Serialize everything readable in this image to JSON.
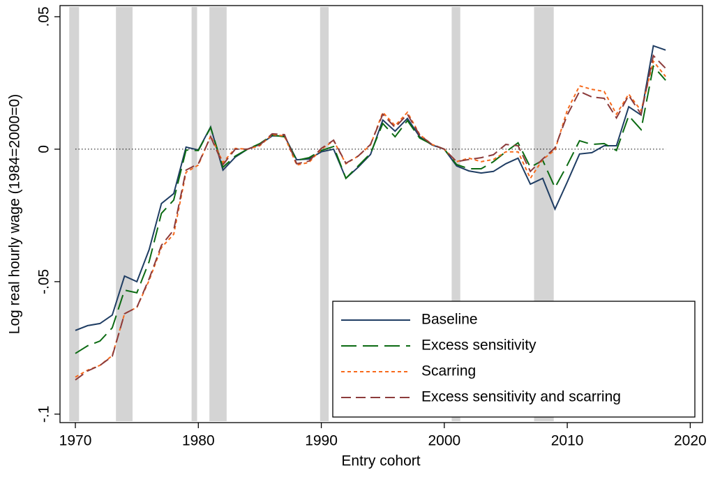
{
  "chart_data": {
    "type": "line",
    "xlabel": "Entry cohort",
    "ylabel": "Log real hourly wage (1984=2000=0)",
    "x": [
      1970,
      1971,
      1972,
      1973,
      1974,
      1975,
      1976,
      1977,
      1978,
      1979,
      1980,
      1981,
      1982,
      1983,
      1984,
      1985,
      1986,
      1987,
      1988,
      1989,
      1990,
      1991,
      1992,
      1993,
      1994,
      1995,
      1996,
      1997,
      1998,
      1999,
      2000,
      2001,
      2002,
      2003,
      2004,
      2005,
      2006,
      2007,
      2008,
      2009,
      2010,
      2011,
      2012,
      2013,
      2014,
      2015,
      2016,
      2017,
      2018
    ],
    "series": [
      {
        "name": "Baseline",
        "color": "#1f3d63",
        "dash": "solid",
        "values": [
          -0.0684,
          -0.0666,
          -0.0658,
          -0.0626,
          -0.0479,
          -0.05,
          -0.0379,
          -0.0205,
          -0.0168,
          0.0008,
          -0.0003,
          0.0084,
          -0.0079,
          -0.003,
          0,
          0.0018,
          0.005,
          0.005,
          -0.004,
          -0.0037,
          -0.001,
          0,
          -0.011,
          -0.0068,
          -0.002,
          0.011,
          0.0068,
          0.0116,
          0.0047,
          0.0016,
          0,
          -0.0063,
          -0.0082,
          -0.009,
          -0.0084,
          -0.0055,
          -0.0034,
          -0.0132,
          -0.011,
          -0.0226,
          -0.0124,
          -0.0018,
          -0.0013,
          0.0013,
          0.0013,
          0.016,
          0.0129,
          0.039,
          0.0374
        ]
      },
      {
        "name": "Excess sensitivity",
        "color": "#0b6a12",
        "dash": "longdash",
        "values": [
          -0.0771,
          -0.0742,
          -0.0724,
          -0.0674,
          -0.0532,
          -0.0542,
          -0.0424,
          -0.0242,
          -0.0192,
          -0.0003,
          -0.0005,
          0.0082,
          -0.0068,
          -0.0026,
          0,
          0.0021,
          0.0053,
          0.0047,
          -0.0042,
          -0.0032,
          -0.0005,
          0.001,
          -0.011,
          -0.0063,
          -0.0016,
          0.0097,
          0.0047,
          0.0108,
          0.0042,
          0.0018,
          0,
          -0.0058,
          -0.0074,
          -0.0074,
          -0.0047,
          -0.001,
          0.0024,
          -0.0068,
          -0.0042,
          -0.0145,
          -0.006,
          0.0032,
          0.0018,
          0.0021,
          -0.0005,
          0.0126,
          0.0074,
          0.0313,
          0.026
        ]
      },
      {
        "name": "Scarring",
        "color": "#f76a1c",
        "dash": "shortdash",
        "values": [
          -0.086,
          -0.0834,
          -0.0816,
          -0.0779,
          -0.0621,
          -0.0597,
          -0.0495,
          -0.0371,
          -0.0321,
          -0.0087,
          -0.006,
          0.005,
          -0.005,
          0.0003,
          0,
          0.0013,
          0.0055,
          0.005,
          -0.006,
          -0.005,
          0,
          0.0032,
          -0.0055,
          -0.0026,
          0.0016,
          0.0139,
          0.0089,
          0.0139,
          0.0055,
          0.0018,
          0,
          -0.0047,
          -0.0034,
          -0.0047,
          -0.0039,
          -0.001,
          -0.001,
          -0.011,
          -0.0039,
          -0.0003,
          0.0147,
          0.0239,
          0.0226,
          0.0218,
          0.0132,
          0.0208,
          0.0145,
          0.0332,
          0.0274
        ]
      },
      {
        "name": "Excess sensitivity and scarring",
        "color": "#8c3b3b",
        "dash": "dash",
        "values": [
          -0.0871,
          -0.0837,
          -0.0816,
          -0.0782,
          -0.0621,
          -0.0597,
          -0.0489,
          -0.0363,
          -0.0305,
          -0.0079,
          -0.0055,
          0.0047,
          -0.0058,
          0,
          0,
          0.0016,
          0.0058,
          0.0055,
          -0.0055,
          -0.0045,
          0.0003,
          0.0034,
          -0.0053,
          -0.0026,
          0.0018,
          0.0132,
          0.0082,
          0.0132,
          0.0053,
          0.0018,
          0,
          -0.0047,
          -0.0039,
          -0.0032,
          -0.0021,
          0.0018,
          0.0013,
          -0.0084,
          -0.0037,
          0.0005,
          0.0129,
          0.0218,
          0.0197,
          0.0192,
          0.0118,
          0.0203,
          0.0132,
          0.0353,
          0.0305
        ]
      }
    ],
    "recessions": [
      [
        1969.5,
        1970.3
      ],
      [
        1973.3,
        1974.65
      ],
      [
        1979.45,
        1979.9
      ],
      [
        1980.9,
        1982.3
      ],
      [
        1989.9,
        1990.6
      ],
      [
        2000.6,
        2001.3
      ],
      [
        2007.3,
        2008.9
      ]
    ],
    "reference_line": 0,
    "xlim": [
      1968.75,
      2021
    ],
    "xticks": [
      1970,
      1980,
      1990,
      2000,
      2010,
      2020
    ],
    "ylim": [
      -0.1032,
      0.0542
    ],
    "yticks": [
      {
        "value": -0.1,
        "label": "-.1"
      },
      {
        "value": -0.05,
        "label": "-.05"
      },
      0,
      {
        "value": 0.05,
        "label": ".05"
      }
    ],
    "legend": "lower right"
  }
}
